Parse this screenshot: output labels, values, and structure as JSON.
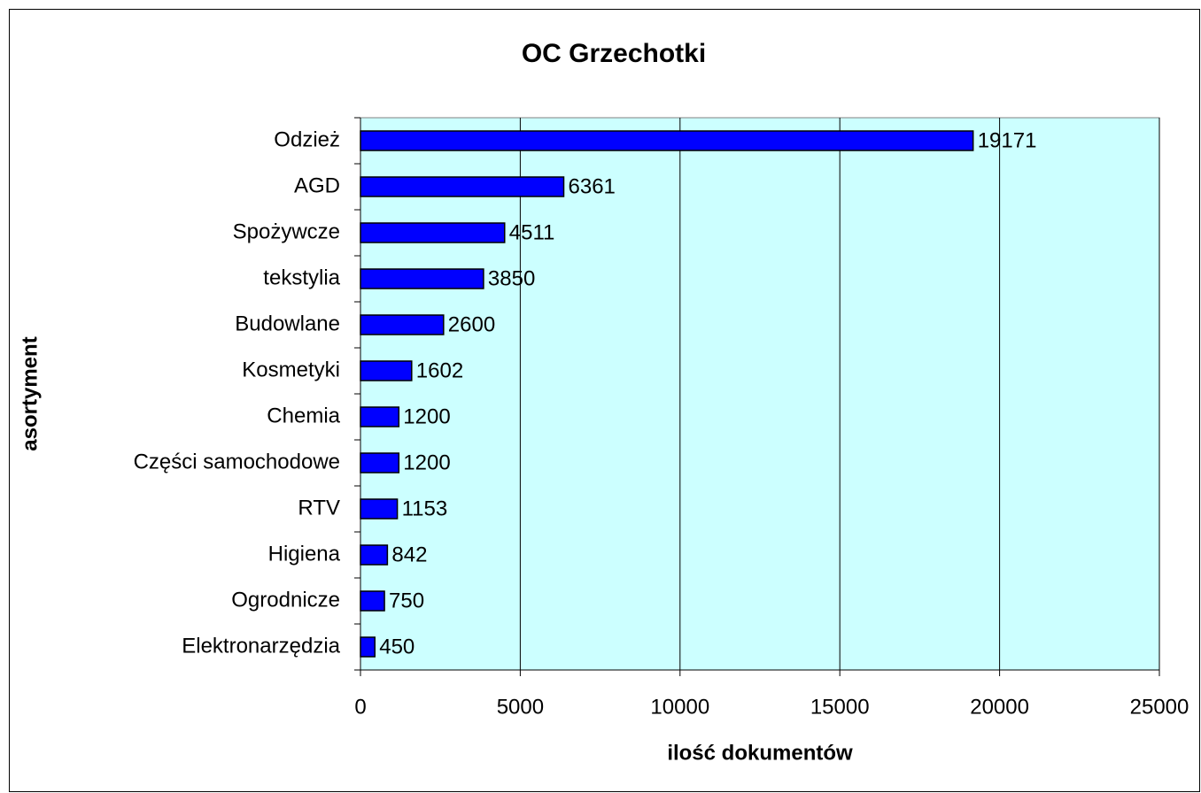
{
  "chart_data": {
    "type": "hbar",
    "title": "OC Grzechotki",
    "xlabel": "ilość dokumentów",
    "ylabel": "asortyment",
    "categories": [
      "Odzież",
      "AGD",
      "Spożywcze",
      "tekstylia",
      "Budowlane",
      "Kosmetyki",
      "Chemia",
      "Części samochodowe",
      "RTV",
      "Higiena",
      "Ogrodnicze",
      "Elektronarzędzia"
    ],
    "values": [
      19171,
      6361,
      4511,
      3850,
      2600,
      1602,
      1200,
      1200,
      1153,
      842,
      750,
      450
    ],
    "color": "#0000ff",
    "background": "#ccffff",
    "xlim": [
      0,
      25000
    ],
    "xticks": [
      0,
      5000,
      10000,
      15000,
      20000,
      25000
    ],
    "grid": true
  }
}
